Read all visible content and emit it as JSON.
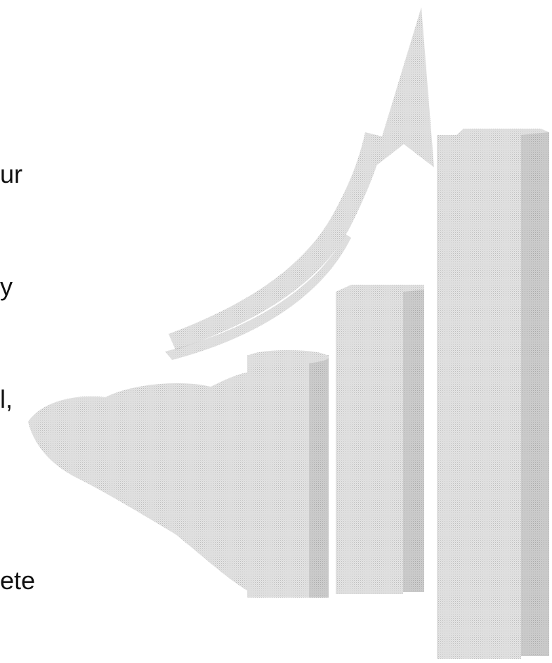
{
  "text_fragments": [
    "ur",
    "y",
    "l,",
    "ete"
  ],
  "illustration": {
    "subject": "bar-chart-with-rising-arrow",
    "fill_color": "#d9d9d9",
    "shadow_color": "#bdbdbd",
    "bar_levels": [
      0.28,
      0.5,
      0.78,
      1.0
    ]
  }
}
